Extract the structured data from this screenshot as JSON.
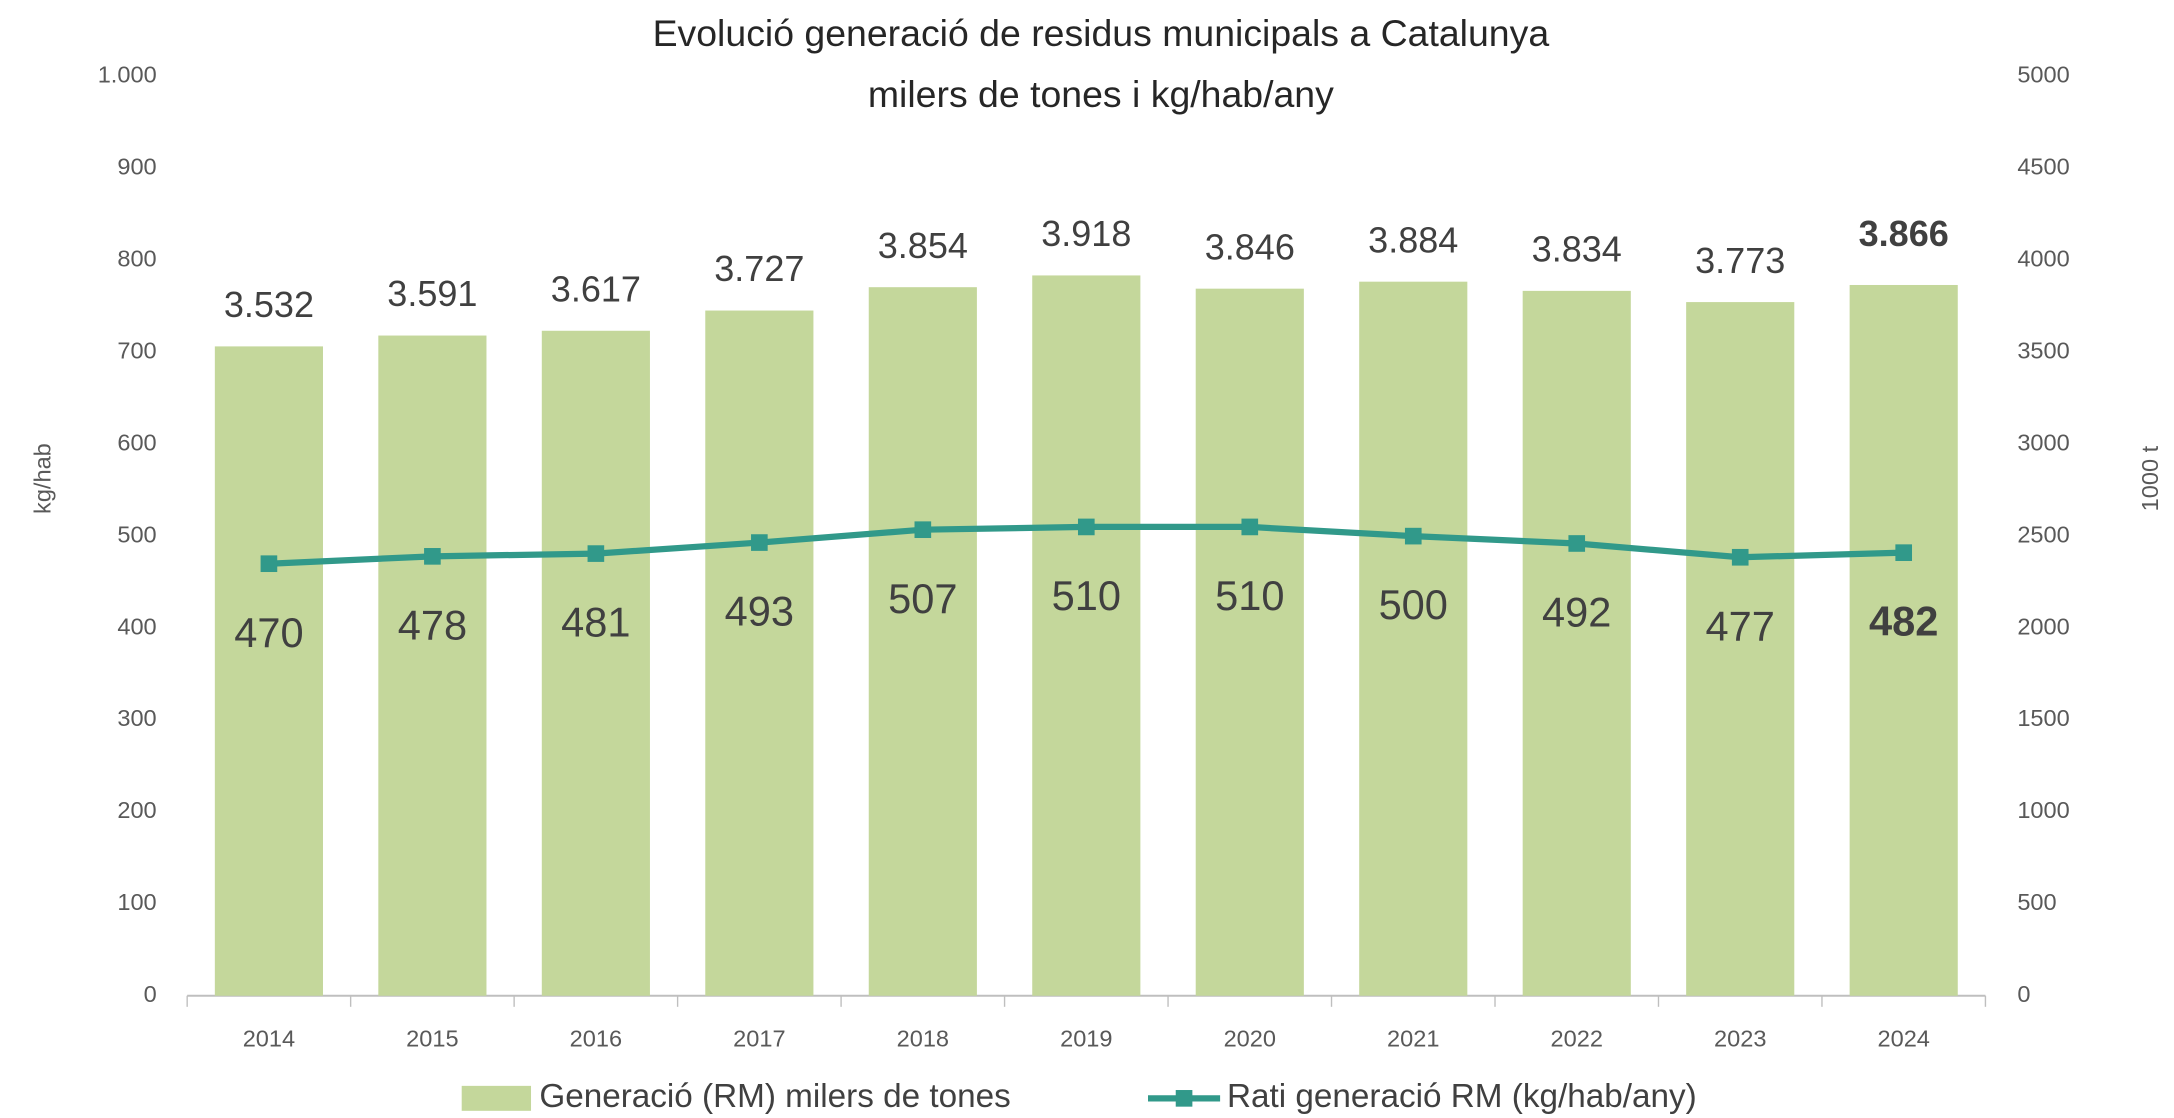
{
  "chart_data": {
    "type": "bar",
    "title": "Evolució generació de residus municipals a Catalunya",
    "subtitle": "milers de tones i kg/hab/any",
    "y_label": "kg/hab",
    "y2_label": "1000 t",
    "categories": [
      "2014",
      "2015",
      "2016",
      "2017",
      "2018",
      "2019",
      "2020",
      "2021",
      "2022",
      "2023",
      "2024"
    ],
    "series": [
      {
        "name": "Generació (RM) milers de tones",
        "type": "bar",
        "color": "#c4d79b",
        "axis": "y2",
        "values": [
          3532,
          3591,
          3617,
          3727,
          3854,
          3918,
          3846,
          3884,
          3834,
          3773,
          3866
        ],
        "value_labels": [
          "3.532",
          "3.591",
          "3.617",
          "3.727",
          "3.854",
          "3.918",
          "3.846",
          "3.884",
          "3.834",
          "3.773",
          "3.866"
        ]
      },
      {
        "name": "Rati generació RM  (kg/hab/any)",
        "type": "line",
        "color": "#31998a",
        "axis": "y",
        "values": [
          470,
          478,
          481,
          493,
          507,
          510,
          510,
          500,
          492,
          477,
          482
        ]
      }
    ],
    "ylim": [
      0,
      1000
    ],
    "yticks": [
      0,
      100,
      200,
      300,
      400,
      500,
      600,
      700,
      800,
      900,
      {
        "value": 1000,
        "label": "1.000"
      }
    ],
    "y2lim": [
      0,
      5000
    ],
    "y2ticks": [
      0,
      500,
      1000,
      1500,
      2000,
      2500,
      3000,
      3500,
      4000,
      4500,
      5000
    ],
    "legend": "bottom"
  }
}
